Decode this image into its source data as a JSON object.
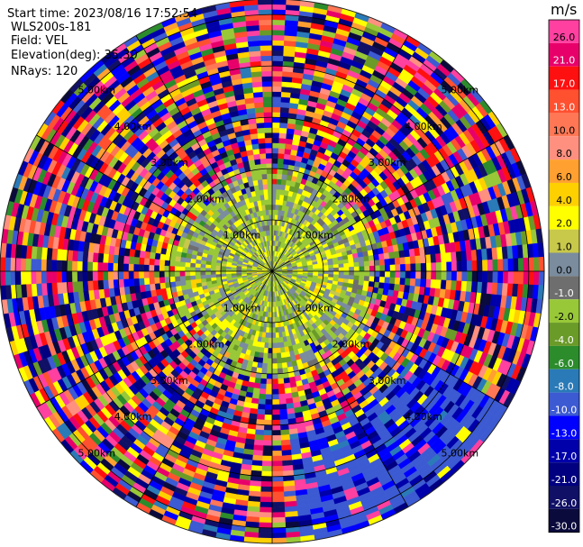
{
  "header": {
    "start_time": "Start time: 2023/08/16 17:52:54",
    "site": "WLS200s-181",
    "field": "Field: VEL",
    "elevation": "Elevation(deg): 35.30",
    "nrays": "NRays: 120"
  },
  "chart_data": {
    "type": "heatmap",
    "subtype": "polar-ppi",
    "nrays": 120,
    "range_rings_km": [
      1.0,
      2.0,
      3.0,
      4.0,
      5.0
    ],
    "range_ring_labels": [
      "1.00km",
      "2.00km",
      "3.00km",
      "4.00km",
      "5.00km"
    ],
    "max_range_km": 5.3,
    "gates_per_ray": 53,
    "colorbar": {
      "title": "m/s",
      "tick_labels": [
        "26.0",
        "21.0",
        "17.0",
        "13.0",
        "10.0",
        "8.0",
        "6.0",
        "4.0",
        "2.0",
        "1.0",
        "0.0",
        "-1.0",
        "-2.0",
        "-4.0",
        "-6.0",
        "-8.0",
        "-10.0",
        "-13.0",
        "-17.0",
        "-21.0",
        "-26.0",
        "-30.0"
      ],
      "colors": [
        "#ff40a0",
        "#e8006a",
        "#ff1010",
        "#ff5030",
        "#ff7755",
        "#ff9080",
        "#ffa030",
        "#ffd000",
        "#ffff00",
        "#c8c84a",
        "#7a8c9e",
        "#6e6e6e",
        "#98c838",
        "#6a9a28",
        "#2c8c2c",
        "#2a7ab8",
        "#3c5ad2",
        "#0000ff",
        "#0000aa",
        "#000080",
        "#101066",
        "#0a0a3c"
      ]
    }
  }
}
